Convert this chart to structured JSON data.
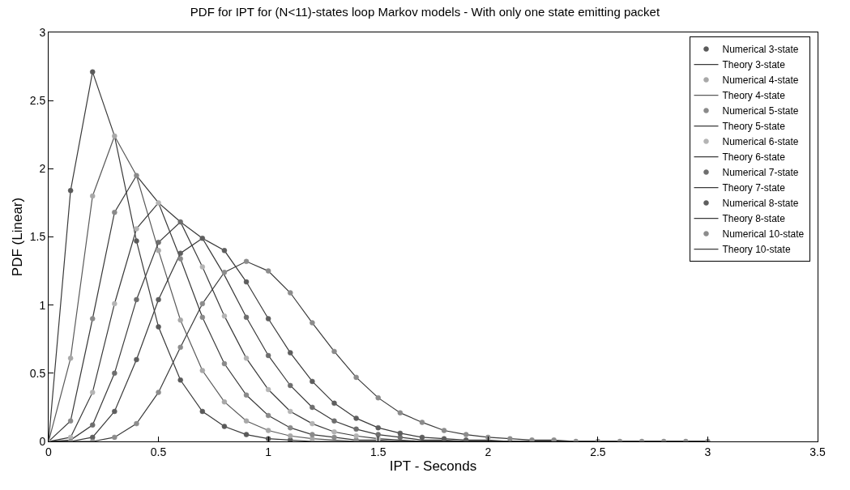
{
  "chart_data": {
    "type": "line",
    "title": "PDF for IPT for (N<11)-states loop Markov models - With only one state emitting packet",
    "xlabel": "IPT - Seconds",
    "ylabel": "PDF (Linear)",
    "xlim": [
      0,
      3.5
    ],
    "xticks": [
      0,
      0.5,
      1,
      1.5,
      2,
      2.5,
      3,
      3.5
    ],
    "ylim": [
      0,
      3
    ],
    "yticks": [
      0,
      0.5,
      1,
      1.5,
      2,
      2.5,
      3
    ],
    "legend": "top right",
    "x": [
      0,
      0.1,
      0.2,
      0.3,
      0.4,
      0.5,
      0.6,
      0.7,
      0.8,
      0.9,
      1.0,
      1.1,
      1.2,
      1.3,
      1.4,
      1.5,
      1.6,
      1.7,
      1.8,
      1.9,
      2.0,
      2.1,
      2.2,
      2.3,
      2.4,
      2.5,
      2.6,
      2.7,
      2.8,
      2.9,
      3.0
    ],
    "series": [
      {
        "name": "Numerical 3-state",
        "type": "scatter",
        "marker": "circle",
        "color": "#5a5a5a",
        "values": [
          null,
          1.84,
          2.71,
          null,
          1.47,
          0.84,
          0.45,
          0.22,
          0.11,
          0.05,
          0.02,
          0.01,
          null,
          null,
          null,
          null,
          null,
          null,
          null,
          null,
          null,
          null,
          null,
          null,
          null,
          null,
          null,
          null,
          null,
          null,
          null
        ]
      },
      {
        "name": "Theory 3-state",
        "line_style": "solid",
        "color": "#3a3a3a",
        "values": [
          0,
          1.84,
          2.71,
          2.24,
          1.47,
          0.84,
          0.45,
          0.22,
          0.11,
          0.05,
          0.02,
          0.01,
          0,
          0,
          0,
          0,
          0,
          0,
          0,
          0,
          0,
          0,
          0,
          0,
          0,
          0,
          0,
          0,
          0,
          0,
          0
        ]
      },
      {
        "name": "Numerical 4-state",
        "type": "scatter",
        "marker": "circle",
        "color": "#a8a8a8",
        "values": [
          null,
          0.61,
          1.8,
          2.24,
          null,
          1.4,
          0.89,
          0.52,
          0.29,
          0.15,
          0.08,
          0.04,
          0.02,
          null,
          null,
          null,
          null,
          null,
          null,
          null,
          null,
          null,
          null,
          null,
          null,
          null,
          null,
          null,
          null,
          null,
          null
        ]
      },
      {
        "name": "Theory 4-state",
        "line_style": "solid",
        "color": "#5a5a5a",
        "values": [
          0,
          0.61,
          1.8,
          2.24,
          1.95,
          1.4,
          0.89,
          0.52,
          0.29,
          0.15,
          0.08,
          0.04,
          0.02,
          0.01,
          0,
          0,
          0,
          0,
          0,
          0,
          0,
          0,
          0,
          0,
          0,
          0,
          0,
          0,
          0,
          0,
          0
        ]
      },
      {
        "name": "Numerical 5-state",
        "type": "scatter",
        "marker": "circle",
        "color": "#8a8a8a",
        "values": [
          null,
          0.15,
          0.9,
          1.68,
          1.95,
          null,
          1.34,
          0.91,
          0.57,
          0.34,
          0.19,
          0.1,
          0.05,
          0.03,
          0.01,
          null,
          null,
          null,
          null,
          null,
          null,
          null,
          null,
          null,
          null,
          null,
          null,
          null,
          null,
          null,
          null
        ]
      },
      {
        "name": "Theory 5-state",
        "line_style": "solid",
        "color": "#3a3a3a",
        "values": [
          0,
          0.15,
          0.9,
          1.68,
          1.95,
          1.75,
          1.34,
          0.91,
          0.57,
          0.34,
          0.19,
          0.1,
          0.05,
          0.03,
          0.01,
          0.01,
          0,
          0,
          0,
          0,
          0,
          0,
          0,
          0,
          0,
          0,
          0,
          0,
          0,
          0,
          0
        ]
      },
      {
        "name": "Numerical 6-state",
        "type": "scatter",
        "marker": "circle",
        "color": "#b4b4b4",
        "values": [
          null,
          0.03,
          0.36,
          1.01,
          1.56,
          1.75,
          null,
          1.28,
          0.92,
          0.61,
          0.38,
          0.22,
          0.13,
          0.07,
          0.04,
          0.02,
          null,
          null,
          null,
          null,
          null,
          null,
          null,
          null,
          null,
          null,
          null,
          null,
          null,
          null,
          null
        ]
      },
      {
        "name": "Theory 6-state",
        "line_style": "solid",
        "color": "#3a3a3a",
        "values": [
          0,
          0.03,
          0.36,
          1.01,
          1.56,
          1.75,
          1.61,
          1.28,
          0.92,
          0.61,
          0.38,
          0.22,
          0.13,
          0.07,
          0.04,
          0.02,
          0.01,
          0,
          0,
          0,
          0,
          0,
          0,
          0,
          0,
          0,
          0,
          0,
          0,
          0,
          0
        ]
      },
      {
        "name": "Numerical 7-state",
        "type": "scatter",
        "marker": "circle",
        "color": "#6e6e6e",
        "values": [
          null,
          null,
          0.12,
          0.5,
          1.04,
          1.46,
          1.61,
          null,
          null,
          0.91,
          0.63,
          0.41,
          0.25,
          0.15,
          0.09,
          0.05,
          0.03,
          null,
          null,
          null,
          null,
          null,
          null,
          null,
          null,
          null,
          null,
          null,
          null,
          null,
          null
        ]
      },
      {
        "name": "Theory 7-state",
        "line_style": "solid",
        "color": "#3a3a3a",
        "values": [
          0,
          0.01,
          0.12,
          0.5,
          1.04,
          1.46,
          1.61,
          1.49,
          1.22,
          0.91,
          0.63,
          0.41,
          0.25,
          0.15,
          0.09,
          0.05,
          0.03,
          0.01,
          0.01,
          0,
          0,
          0,
          0,
          0,
          0,
          0,
          0,
          0,
          0,
          0,
          0
        ]
      },
      {
        "name": "Numerical 8-state",
        "type": "scatter",
        "marker": "circle",
        "color": "#5e5e5e",
        "values": [
          null,
          null,
          0.03,
          0.22,
          0.6,
          1.04,
          1.38,
          1.49,
          1.4,
          1.17,
          0.9,
          0.65,
          0.44,
          0.28,
          0.17,
          0.1,
          0.06,
          0.03,
          0.02,
          0.01,
          null,
          null,
          null,
          null,
          null,
          null,
          null,
          null,
          null,
          null,
          null
        ]
      },
      {
        "name": "Theory 8-state",
        "line_style": "solid",
        "color": "#3a3a3a",
        "values": [
          0,
          0,
          0.03,
          0.22,
          0.6,
          1.04,
          1.38,
          1.49,
          1.4,
          1.17,
          0.9,
          0.65,
          0.44,
          0.28,
          0.17,
          0.1,
          0.06,
          0.03,
          0.02,
          0.01,
          0.01,
          0,
          0,
          0,
          0,
          0,
          0,
          0,
          0,
          0,
          0
        ]
      },
      {
        "name": "Numerical 10-state",
        "type": "scatter",
        "marker": "circle",
        "color": "#8c8c8c",
        "values": [
          0,
          0,
          0,
          0.03,
          0.13,
          0.36,
          0.69,
          1.01,
          1.24,
          1.32,
          1.25,
          1.09,
          0.87,
          0.66,
          0.47,
          0.32,
          0.21,
          0.14,
          0.08,
          0.05,
          0.03,
          0.02,
          0.01,
          0.01,
          0,
          0,
          0,
          0,
          0,
          0,
          0
        ]
      },
      {
        "name": "Theory 10-state",
        "line_style": "solid",
        "color": "#3a3a3a",
        "values": [
          0,
          0,
          0,
          0.03,
          0.13,
          0.36,
          0.69,
          1.01,
          1.24,
          1.32,
          1.25,
          1.09,
          0.87,
          0.66,
          0.47,
          0.32,
          0.21,
          0.14,
          0.08,
          0.05,
          0.03,
          0.02,
          0.01,
          0.01,
          0,
          0,
          0,
          0,
          0,
          0,
          0
        ]
      }
    ]
  }
}
